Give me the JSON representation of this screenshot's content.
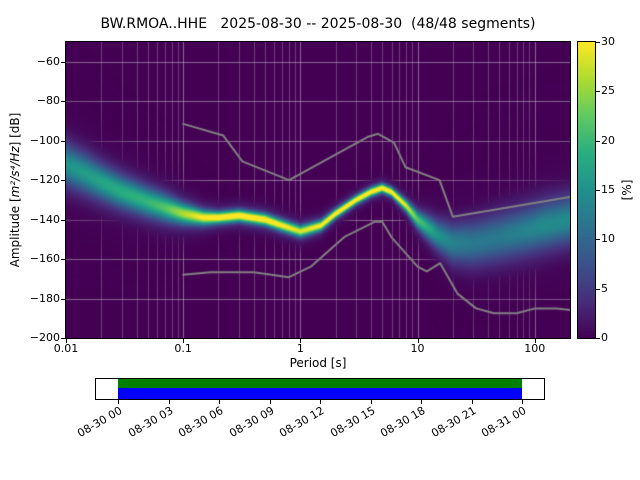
{
  "chart_data": {
    "type": "heatmap",
    "subtype": "ppsd-probabilistic-power-spectral-density",
    "title": "BW.RMOA..HHE   2025-08-30 -- 2025-08-30  (48/48 segments)",
    "xlabel": "Period [s]",
    "ylabel": "Amplitude [m²/s⁴/Hz] [dB]",
    "ylabel_prefix": "Amplitude [",
    "ylabel_math": "m²/s⁴/Hz",
    "ylabel_suffix": "] [dB]",
    "colorbar_label": "[%]",
    "xscale": "log",
    "xlim": [
      0.01,
      200
    ],
    "ylim": [
      -200,
      -50
    ],
    "grid": true,
    "xticks": [
      0.01,
      0.1,
      1,
      10,
      100
    ],
    "xtick_labels": [
      "0.01",
      "0.1",
      "1",
      "10",
      "100"
    ],
    "yticks": [
      -60,
      -80,
      -100,
      -120,
      -140,
      -160,
      -180,
      -200
    ],
    "ytick_labels": [
      "−60",
      "−80",
      "−100",
      "−120",
      "−140",
      "−160",
      "−180",
      "−200"
    ],
    "colorbar": {
      "min": 0,
      "max": 30,
      "ticks": [
        0,
        5,
        10,
        15,
        20,
        25,
        30
      ],
      "tick_labels": [
        "0",
        "5",
        "10",
        "15",
        "20",
        "25",
        "30"
      ]
    },
    "colors": {
      "background": "#440154",
      "grid": "#cccccc",
      "noise_model": "#808080",
      "figure_bg": "#ffffff",
      "text": "#000000",
      "timeline_green": "#008000",
      "timeline_blue": "#0000ff"
    },
    "colormap_stops": [
      [
        0.0,
        "#440154"
      ],
      [
        0.125,
        "#472d7b"
      ],
      [
        0.25,
        "#3b528b"
      ],
      [
        0.375,
        "#2c728e"
      ],
      [
        0.5,
        "#21918c"
      ],
      [
        0.625,
        "#28ae80"
      ],
      [
        0.75,
        "#5ec962"
      ],
      [
        0.875,
        "#addc30"
      ],
      [
        1.0,
        "#fde725"
      ]
    ],
    "mode_curve": {
      "periods": [
        0.01,
        0.015,
        0.02,
        0.03,
        0.05,
        0.07,
        0.1,
        0.15,
        0.2,
        0.3,
        0.5,
        0.7,
        1.0,
        1.5,
        2.0,
        3.0,
        4.0,
        5.0,
        6.0,
        8.0,
        10,
        15,
        20,
        30,
        50,
        80,
        120,
        200
      ],
      "db": [
        -112,
        -117,
        -121,
        -126,
        -131,
        -134,
        -137,
        -139,
        -139,
        -138,
        -140,
        -143,
        -146,
        -143,
        -137,
        -130,
        -126,
        -124,
        -126,
        -133,
        -140,
        -148,
        -152,
        -152,
        -149,
        -146,
        -143,
        -140
      ],
      "sigma_db": [
        7,
        6.5,
        6,
        5.5,
        5,
        4.5,
        3.5,
        2.5,
        2,
        2,
        2,
        2,
        2,
        1.8,
        1.6,
        1.5,
        1.5,
        1.5,
        1.5,
        2,
        3,
        5,
        6.5,
        7.5,
        8,
        8,
        8,
        8
      ],
      "peak_pct": [
        14,
        15,
        16,
        17,
        18,
        20,
        24,
        28,
        30,
        30,
        30,
        28,
        26,
        28,
        30,
        30,
        30,
        30,
        30,
        26,
        20,
        14,
        12,
        11,
        11,
        12,
        13,
        13
      ]
    },
    "noise_models": {
      "high": {
        "periods": [
          0.1,
          0.22,
          0.32,
          0.8,
          3.8,
          4.6,
          6.3,
          7.9,
          15.4,
          20,
          200
        ],
        "db": [
          -91.5,
          -97.4,
          -110.5,
          -120,
          -98,
          -96.5,
          -101,
          -113.5,
          -120,
          -138.5,
          -128.6
        ]
      },
      "low": {
        "periods": [
          0.1,
          0.17,
          0.4,
          0.8,
          1.24,
          2.4,
          4.3,
          5,
          6,
          10,
          12,
          15.6,
          21.9,
          31.6,
          45,
          70,
          101,
          154,
          200
        ],
        "db": [
          -168,
          -166.7,
          -166.7,
          -169.2,
          -163.7,
          -148.6,
          -141.1,
          -141.1,
          -149,
          -163.8,
          -166.2,
          -162.1,
          -177.5,
          -185,
          -187.5,
          -187.5,
          -185,
          -185,
          -185.8
        ]
      }
    },
    "timeline": {
      "tick_labels": [
        "08-30 00",
        "08-30 03",
        "08-30 06",
        "08-30 09",
        "08-30 12",
        "08-30 15",
        "08-30 18",
        "08-30 21",
        "08-31 00"
      ]
    }
  }
}
